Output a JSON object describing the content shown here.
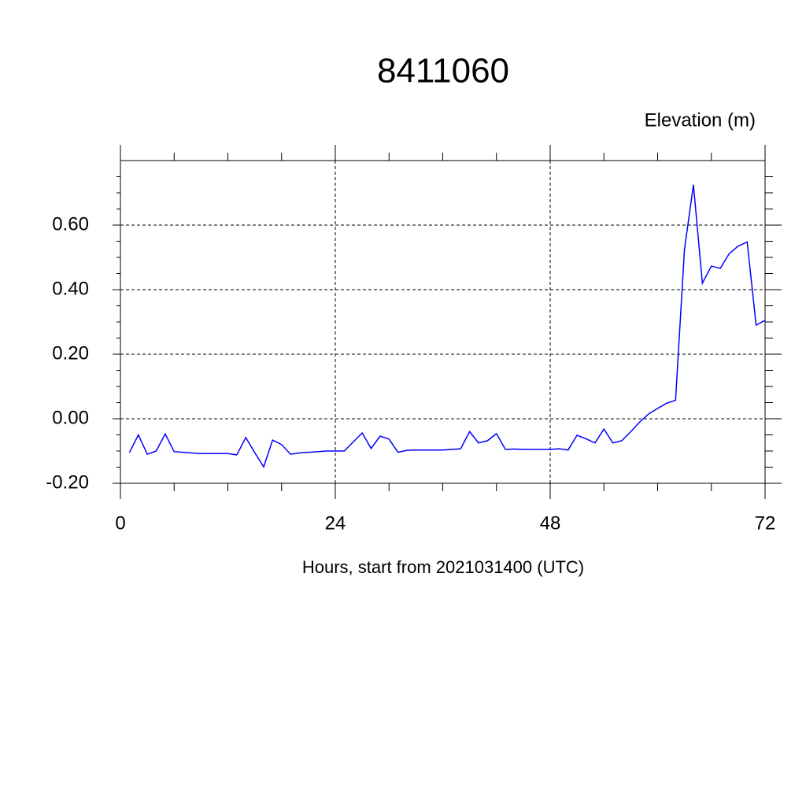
{
  "chart_data": {
    "type": "line",
    "title": "8411060",
    "ylabel": "Elevation (m)",
    "xlabel": "Hours, start from 2021031400 (UTC)",
    "x": [
      1,
      2,
      3,
      4,
      5,
      6,
      7,
      8,
      9,
      10,
      11,
      12,
      13,
      14,
      15,
      16,
      17,
      18,
      19,
      20,
      21,
      22,
      23,
      24,
      25,
      26,
      27,
      28,
      29,
      30,
      31,
      32,
      33,
      34,
      35,
      36,
      37,
      38,
      39,
      40,
      41,
      42,
      43,
      44,
      45,
      46,
      47,
      48,
      49,
      50,
      51,
      52,
      53,
      54,
      55,
      56,
      57,
      58,
      59,
      60,
      61,
      62,
      63,
      64,
      65,
      66,
      67,
      68,
      69,
      70,
      71,
      72
    ],
    "series": [
      {
        "name": "Elevation",
        "color": "#0000ff",
        "values": [
          -0.105,
          -0.05,
          -0.11,
          -0.1,
          -0.047,
          -0.102,
          -0.104,
          -0.106,
          -0.108,
          -0.108,
          -0.108,
          -0.108,
          -0.112,
          -0.058,
          -0.105,
          -0.149,
          -0.066,
          -0.08,
          -0.11,
          -0.106,
          -0.104,
          -0.102,
          -0.1,
          -0.1,
          -0.1,
          -0.072,
          -0.044,
          -0.092,
          -0.054,
          -0.063,
          -0.104,
          -0.098,
          -0.097,
          -0.097,
          -0.097,
          -0.097,
          -0.095,
          -0.093,
          -0.04,
          -0.075,
          -0.068,
          -0.046,
          -0.095,
          -0.094,
          -0.095,
          -0.095,
          -0.095,
          -0.095,
          -0.093,
          -0.097,
          -0.051,
          -0.062,
          -0.075,
          -0.032,
          -0.075,
          -0.068,
          -0.04,
          -0.01,
          0.015,
          0.032,
          0.048,
          0.057,
          0.525,
          0.725,
          0.42,
          0.473,
          0.466,
          0.512,
          0.535,
          0.548,
          0.29,
          0.305
        ]
      }
    ],
    "xlim": [
      0,
      72
    ],
    "xticks": [
      0,
      24,
      48,
      72
    ],
    "xminorticks": [
      6,
      12,
      18,
      30,
      36,
      42,
      54,
      60,
      66
    ],
    "ylim": [
      -0.2,
      0.8
    ],
    "yticks": [
      {
        "value": -0.2,
        "label": "-0.20"
      },
      {
        "value": 0,
        "label": "0.00"
      },
      {
        "value": 0.2,
        "label": "0.20"
      },
      {
        "value": 0.4,
        "label": "0.40"
      },
      {
        "value": 0.6,
        "label": "0.60"
      }
    ],
    "yminorticks": [
      -0.15,
      -0.1,
      -0.05,
      0.05,
      0.1,
      0.15,
      0.25,
      0.3,
      0.35,
      0.45,
      0.5,
      0.55,
      0.65,
      0.7,
      0.75
    ],
    "grid": true
  }
}
